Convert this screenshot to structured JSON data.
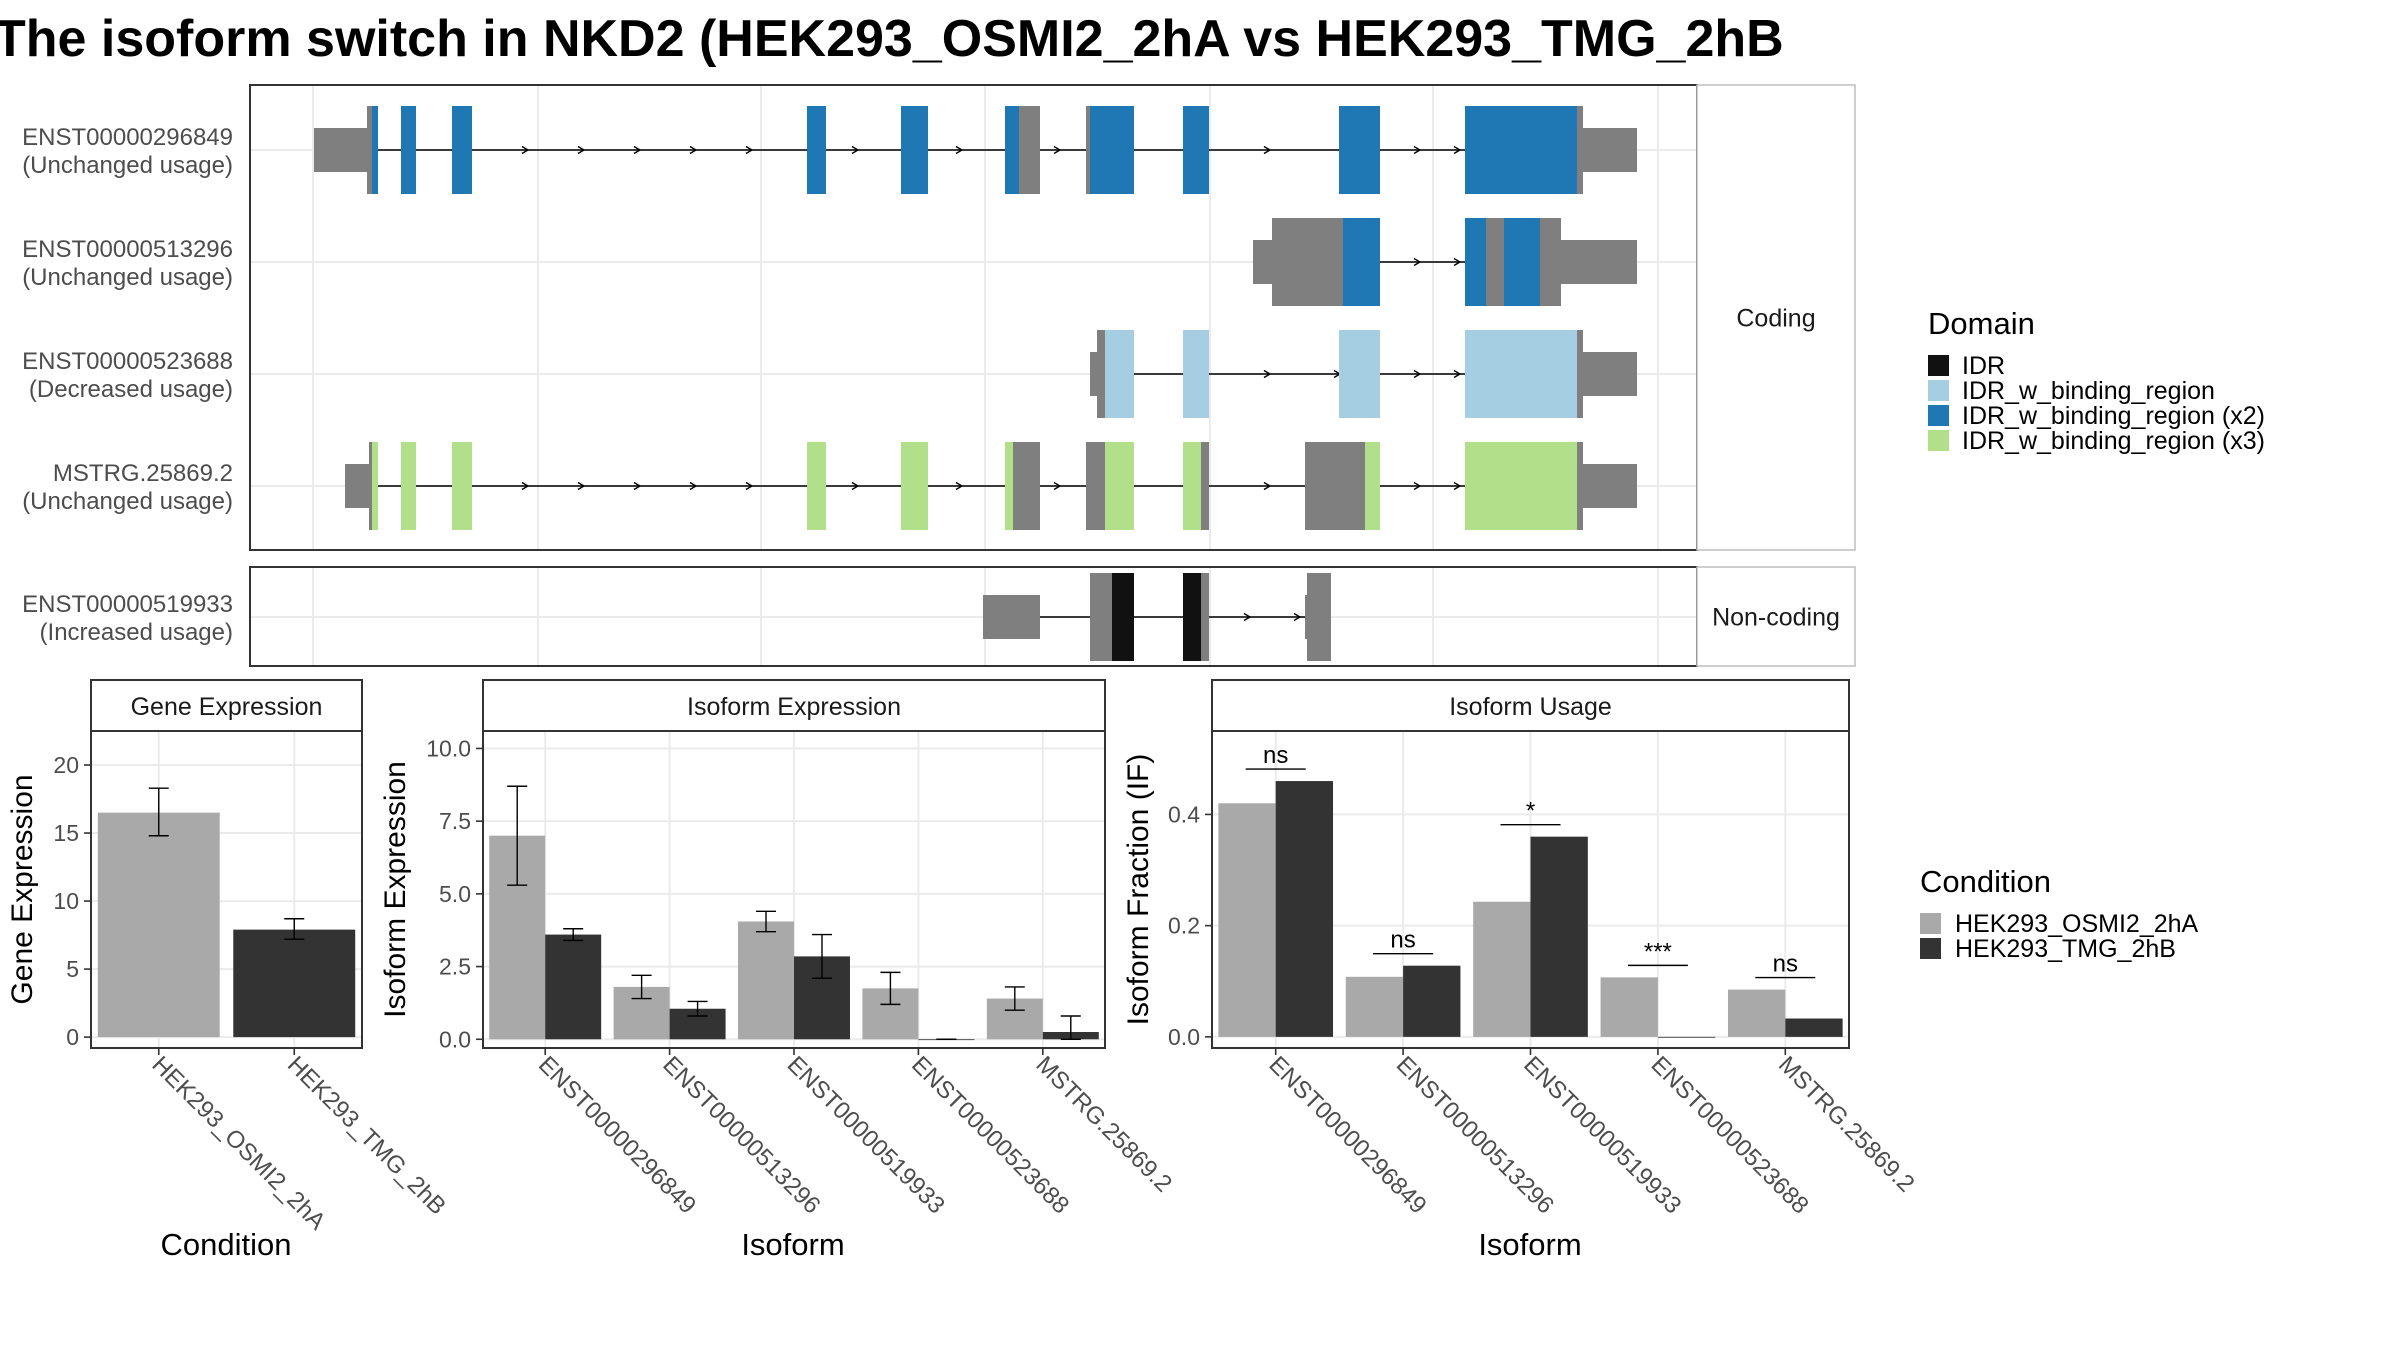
{
  "title": "The isoform switch in NKD2 (HEK293_OSMI2_2hA vs HEK293_TMG_2hB",
  "colors": {
    "gray_box": "#7f7f7f",
    "IDR": "#111111",
    "IDR_w_binding_region": "#a6cee3",
    "IDR_w_binding_region (x2)": "#1f78b4",
    "IDR_w_binding_region (x3)": "#b2df8a",
    "cond_a": "#a9a9a9",
    "cond_b": "#333333",
    "panel_border": "#333333",
    "strip_bg": "#ffffff",
    "grid": "#ebebeb"
  },
  "transcripts": {
    "facet_labels": [
      "Coding",
      "Non-coding"
    ],
    "rows": [
      {
        "id": "ENST00000296849",
        "status": "(Unchanged usage)",
        "facet": "Coding"
      },
      {
        "id": "ENST00000513296",
        "status": "(Unchanged usage)",
        "facet": "Coding"
      },
      {
        "id": "ENST00000523688",
        "status": "(Decreased usage)",
        "facet": "Coding"
      },
      {
        "id": "MSTRG.25869.2",
        "status": "(Unchanged usage)",
        "facet": "Coding"
      },
      {
        "id": "ENST00000519933",
        "status": "(Increased usage)",
        "facet": "Non-coding"
      }
    ]
  },
  "domain_legend": {
    "title": "Domain",
    "items": [
      {
        "label": "IDR",
        "color": "#111111"
      },
      {
        "label": "IDR_w_binding_region",
        "color": "#a6cee3"
      },
      {
        "label": "IDR_w_binding_region (x2)",
        "color": "#1f78b4"
      },
      {
        "label": "IDR_w_binding_region (x3)",
        "color": "#b2df8a"
      }
    ]
  },
  "condition_legend": {
    "title": "Condition",
    "items": [
      {
        "label": "HEK293_OSMI2_2hA",
        "color": "#a9a9a9"
      },
      {
        "label": "HEK293_TMG_2hB",
        "color": "#333333"
      }
    ]
  },
  "chart_data": [
    {
      "type": "bar",
      "title": "Gene Expression",
      "xlabel": "Condition",
      "ylabel": "Gene Expression",
      "categories": [
        "HEK293_OSMI2_2hA",
        "HEK293_TMG_2hB"
      ],
      "values": [
        16.5,
        7.9
      ],
      "errors": [
        [
          14.8,
          18.3
        ],
        [
          7.2,
          8.7
        ]
      ],
      "ylim": [
        -0.8,
        22.5
      ],
      "yticks": [
        0,
        5,
        10,
        15,
        20
      ],
      "ytick_labels": [
        "0",
        "5",
        "10",
        "15",
        "20"
      ],
      "grid": true
    },
    {
      "type": "bar",
      "title": "Isoform Expression",
      "xlabel": "Isoform",
      "ylabel": "Isoform Expression",
      "categories": [
        "ENST00000296849",
        "ENST00000513296",
        "ENST00000519933",
        "ENST00000523688",
        "MSTRG.25869.2"
      ],
      "series": [
        {
          "name": "HEK293_OSMI2_2hA",
          "values": [
            7.0,
            1.8,
            4.05,
            1.75,
            1.4
          ],
          "errors": [
            [
              5.3,
              8.7
            ],
            [
              1.4,
              2.2
            ],
            [
              3.7,
              4.4
            ],
            [
              1.2,
              2.3
            ],
            [
              1.0,
              1.8
            ]
          ]
        },
        {
          "name": "HEK293_TMG_2hB",
          "values": [
            3.6,
            1.05,
            2.85,
            0.0,
            0.25
          ],
          "errors": [
            [
              3.4,
              3.8
            ],
            [
              0.8,
              1.3
            ],
            [
              2.1,
              3.6
            ],
            [
              0.0,
              0.0
            ],
            [
              0.0,
              0.8
            ]
          ]
        }
      ],
      "ylim": [
        -0.3,
        10.6
      ],
      "yticks": [
        0,
        2.5,
        5,
        7.5,
        10
      ],
      "ytick_labels": [
        "0.0",
        "2.5",
        "5.0",
        "7.5",
        "10.0"
      ],
      "grid": true
    },
    {
      "type": "bar",
      "title": "Isoform Usage",
      "xlabel": "Isoform",
      "ylabel": "Isoform Fraction (IF)",
      "categories": [
        "ENST00000296849",
        "ENST00000513296",
        "ENST00000519933",
        "ENST00000523688",
        "MSTRG.25869.2"
      ],
      "series": [
        {
          "name": "HEK293_OSMI2_2hA",
          "values": [
            0.42,
            0.108,
            0.243,
            0.107,
            0.085
          ]
        },
        {
          "name": "HEK293_TMG_2hB",
          "values": [
            0.46,
            0.128,
            0.36,
            0.0,
            0.033
          ]
        }
      ],
      "significance": [
        "ns",
        "ns",
        "*",
        "***",
        "ns"
      ],
      "ylim": [
        -0.02,
        0.55
      ],
      "yticks": [
        0,
        0.2,
        0.4
      ],
      "ytick_labels": [
        "0.0",
        "0.2",
        "0.4"
      ],
      "grid": true
    }
  ]
}
